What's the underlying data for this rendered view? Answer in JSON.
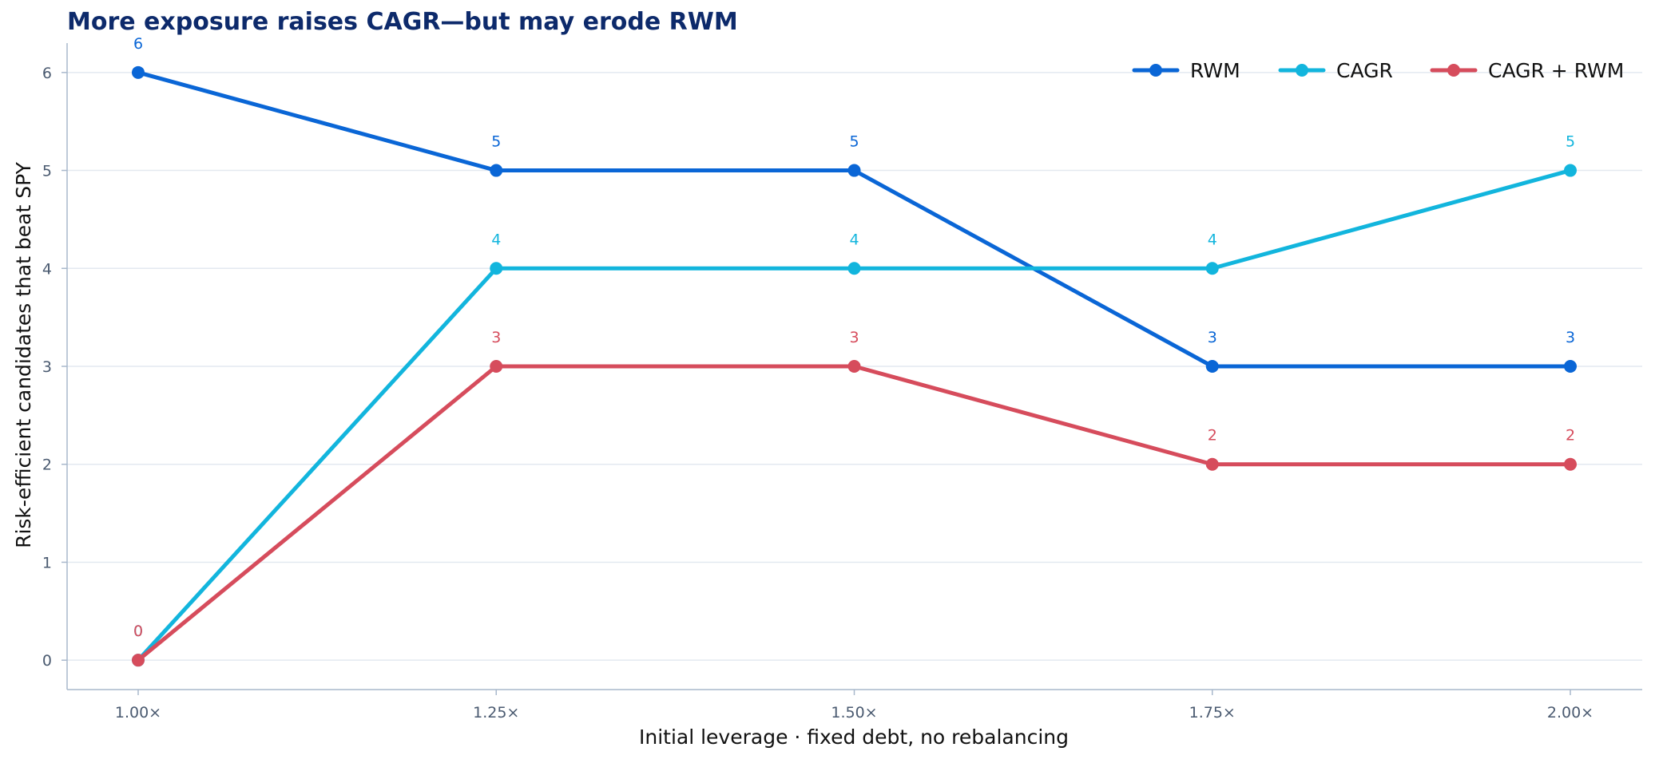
{
  "chart_data": {
    "type": "line",
    "title": "More exposure raises CAGR—but may erode RWM",
    "xlabel": "Initial leverage · fixed debt, no rebalancing",
    "ylabel": "Risk-efficient candidates that beat SPY",
    "categories": [
      "1.00×",
      "1.25×",
      "1.50×",
      "1.75×",
      "2.00×"
    ],
    "ylim": [
      -0.3,
      6.3
    ],
    "yticks": [
      "0",
      "1",
      "2",
      "3",
      "4",
      "5",
      "6"
    ],
    "grid": "horizontal",
    "legend_position": "top-right",
    "series": [
      {
        "name": "RWM",
        "color": "#0a66d6",
        "values": [
          6,
          5,
          5,
          3,
          3
        ],
        "labels": [
          "6",
          "5",
          "5",
          "3",
          "3"
        ]
      },
      {
        "name": "CAGR",
        "color": "#12b5dd",
        "values": [
          0,
          4,
          4,
          4,
          5
        ],
        "labels": [
          "0",
          "4",
          "4",
          "4",
          "5"
        ]
      },
      {
        "name": "CAGR + RWM",
        "color": "#d64c5c",
        "values": [
          0,
          3,
          3,
          2,
          2
        ],
        "labels": [
          "0",
          "3",
          "3",
          "2",
          "2"
        ]
      }
    ]
  }
}
